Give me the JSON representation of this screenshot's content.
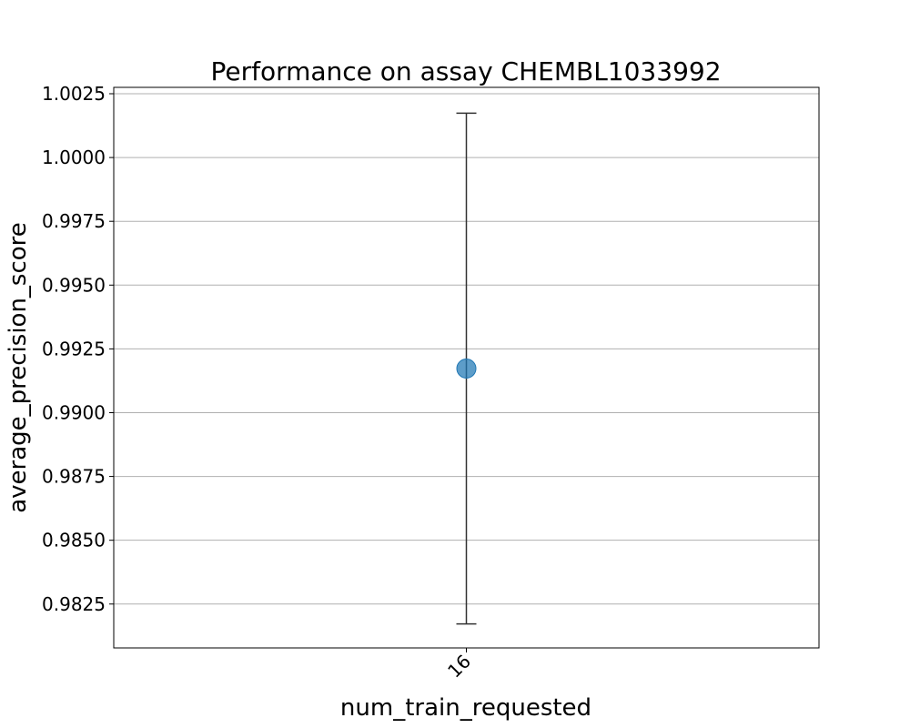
{
  "chart_data": {
    "type": "scatter",
    "title": "Performance on assay CHEMBL1033992",
    "xlabel": "num_train_requested",
    "ylabel": "average_precision_score",
    "categories": [
      "16"
    ],
    "ylim": [
      0.98078,
      1.00275
    ],
    "yticks": [
      "0.9825",
      "0.9850",
      "0.9875",
      "0.9900",
      "0.9925",
      "0.9950",
      "0.9975",
      "1.0000",
      "1.0025"
    ],
    "grid": "horizontal",
    "points": [
      {
        "x": "16",
        "y": 0.99173,
        "err_low": 0.98172,
        "err_high": 1.00174
      }
    ],
    "colors": {
      "marker": "#1f77b4",
      "errorbar": "#333333",
      "grid": "#b0b0b0"
    }
  }
}
